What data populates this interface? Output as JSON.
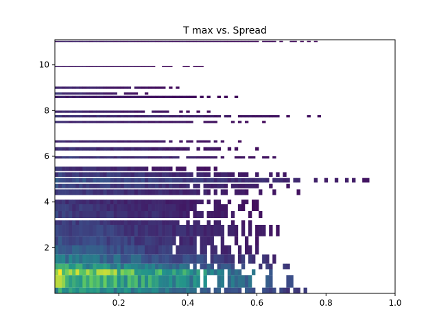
{
  "chart_data": {
    "type": "heatmap",
    "title": "T max vs. Spread",
    "xlabel": "",
    "ylabel": "",
    "xlim": [
      0.015,
      1.0
    ],
    "ylim": [
      0.0,
      11.1
    ],
    "x_ticks": [
      0.2,
      0.4,
      0.6,
      0.8,
      1.0
    ],
    "x_tick_labels": [
      "0.2",
      "0.4",
      "0.6",
      "0.8",
      "1.0"
    ],
    "y_ticks": [
      2,
      4,
      6,
      8,
      10
    ],
    "y_tick_labels": [
      "2",
      "4",
      "6",
      "8",
      "10"
    ],
    "grid": false,
    "legend": "none",
    "colormap": [
      "#440154",
      "#3b528b",
      "#21918c",
      "#5ec962",
      "#fde725"
    ],
    "bands": [
      {
        "y": [
          0.0,
          0.25
        ],
        "x_end": 0.76,
        "level": 0.55
      },
      {
        "y": [
          0.25,
          0.8
        ],
        "x_end": 0.74,
        "level": 0.75
      },
      {
        "y": [
          0.8,
          1.05
        ],
        "x_end": 0.7,
        "level": 0.9
      },
      {
        "y": [
          1.05,
          1.3
        ],
        "x_end": 0.7,
        "level": 0.55
      },
      {
        "y": [
          1.3,
          1.7
        ],
        "x_end": 0.69,
        "level": 0.4
      },
      {
        "y": [
          1.7,
          2.1
        ],
        "x_end": 0.62,
        "level": 0.3
      },
      {
        "y": [
          2.1,
          2.5
        ],
        "x_end": 0.6,
        "level": 0.25
      },
      {
        "y": [
          2.5,
          3.0
        ],
        "x_end": 0.68,
        "level": 0.22
      },
      {
        "y": [
          3.0,
          3.2
        ],
        "x_end": 0.62,
        "level": 0.2
      },
      {
        "y": [
          3.3,
          3.6
        ],
        "x_end": 0.62,
        "level": 0.2
      },
      {
        "y": [
          3.6,
          3.9
        ],
        "x_end": 0.62,
        "level": 0.18
      },
      {
        "y": [
          3.9,
          4.1
        ],
        "x_end": 0.66,
        "level": 0.15
      },
      {
        "y": [
          4.3,
          4.55
        ],
        "x_end": 0.73,
        "level": 0.18
      },
      {
        "y": [
          4.6,
          4.8
        ],
        "x_end": 0.7,
        "level": 0.22
      },
      {
        "y": [
          4.85,
          5.05
        ],
        "x_end": 0.94,
        "level": 0.25
      },
      {
        "y": [
          5.1,
          5.3
        ],
        "x_end": 0.74,
        "level": 0.2
      },
      {
        "y": [
          5.35,
          5.55
        ],
        "x_end": 0.5,
        "level": 0.15
      },
      {
        "y": [
          5.9,
          6.0
        ],
        "x_end": 0.66,
        "level": 0.18
      },
      {
        "y": [
          6.25,
          6.4
        ],
        "x_end": 0.62,
        "level": 0.15
      },
      {
        "y": [
          6.6,
          6.7
        ],
        "x_end": 0.58,
        "level": 0.12
      },
      {
        "y": [
          7.45,
          7.55
        ],
        "x_end": 0.62,
        "level": 0.12
      },
      {
        "y": [
          7.7,
          7.8
        ],
        "x_end": 0.79,
        "level": 0.15
      },
      {
        "y": [
          7.9,
          8.0
        ],
        "x_end": 0.48,
        "level": 0.12
      },
      {
        "y": [
          8.55,
          8.65
        ],
        "x_end": 0.58,
        "level": 0.1
      },
      {
        "y": [
          8.7,
          8.8
        ],
        "x_end": 0.3,
        "level": 0.15
      },
      {
        "y": [
          8.95,
          9.05
        ],
        "x_end": 0.38,
        "level": 0.12
      },
      {
        "y": [
          9.9,
          9.95
        ],
        "x_end": 0.45,
        "level": 0.08
      },
      {
        "y": [
          11.0,
          11.05
        ],
        "x_end": 0.81,
        "level": 0.1
      }
    ]
  }
}
